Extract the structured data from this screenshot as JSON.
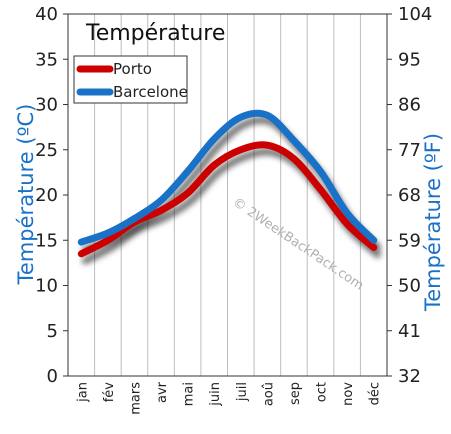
{
  "chart_data": {
    "type": "line",
    "title": "Température",
    "categories": [
      "jan",
      "fév",
      "mars",
      "avr",
      "mai",
      "juin",
      "juil",
      "aoû",
      "sep",
      "oct",
      "nov",
      "déc"
    ],
    "series": [
      {
        "name": "Porto",
        "color": "#cc0000",
        "values": [
          13.5,
          15.0,
          17.0,
          18.3,
          20.2,
          23.3,
          25.0,
          25.5,
          24.0,
          20.6,
          16.8,
          14.2
        ]
      },
      {
        "name": "Barcelone",
        "color": "#1a72c8",
        "values": [
          14.8,
          15.8,
          17.4,
          19.4,
          22.6,
          26.2,
          28.6,
          28.8,
          26.0,
          22.6,
          18.0,
          15.0
        ]
      }
    ],
    "ylabel_left": "Température  (ºC)",
    "ylabel_right": "Température  (ºF)",
    "ylim": [
      0,
      40
    ],
    "yticks_left": [
      "0",
      "5",
      "10",
      "15",
      "20",
      "25",
      "30",
      "35",
      "40"
    ],
    "yticks_right": [
      "32",
      "41",
      "50",
      "59",
      "68",
      "77",
      "86",
      "95",
      "104"
    ],
    "grid": "vertical",
    "legend_position": "top-left",
    "watermark": "© 2WeekBackPack.com"
  }
}
